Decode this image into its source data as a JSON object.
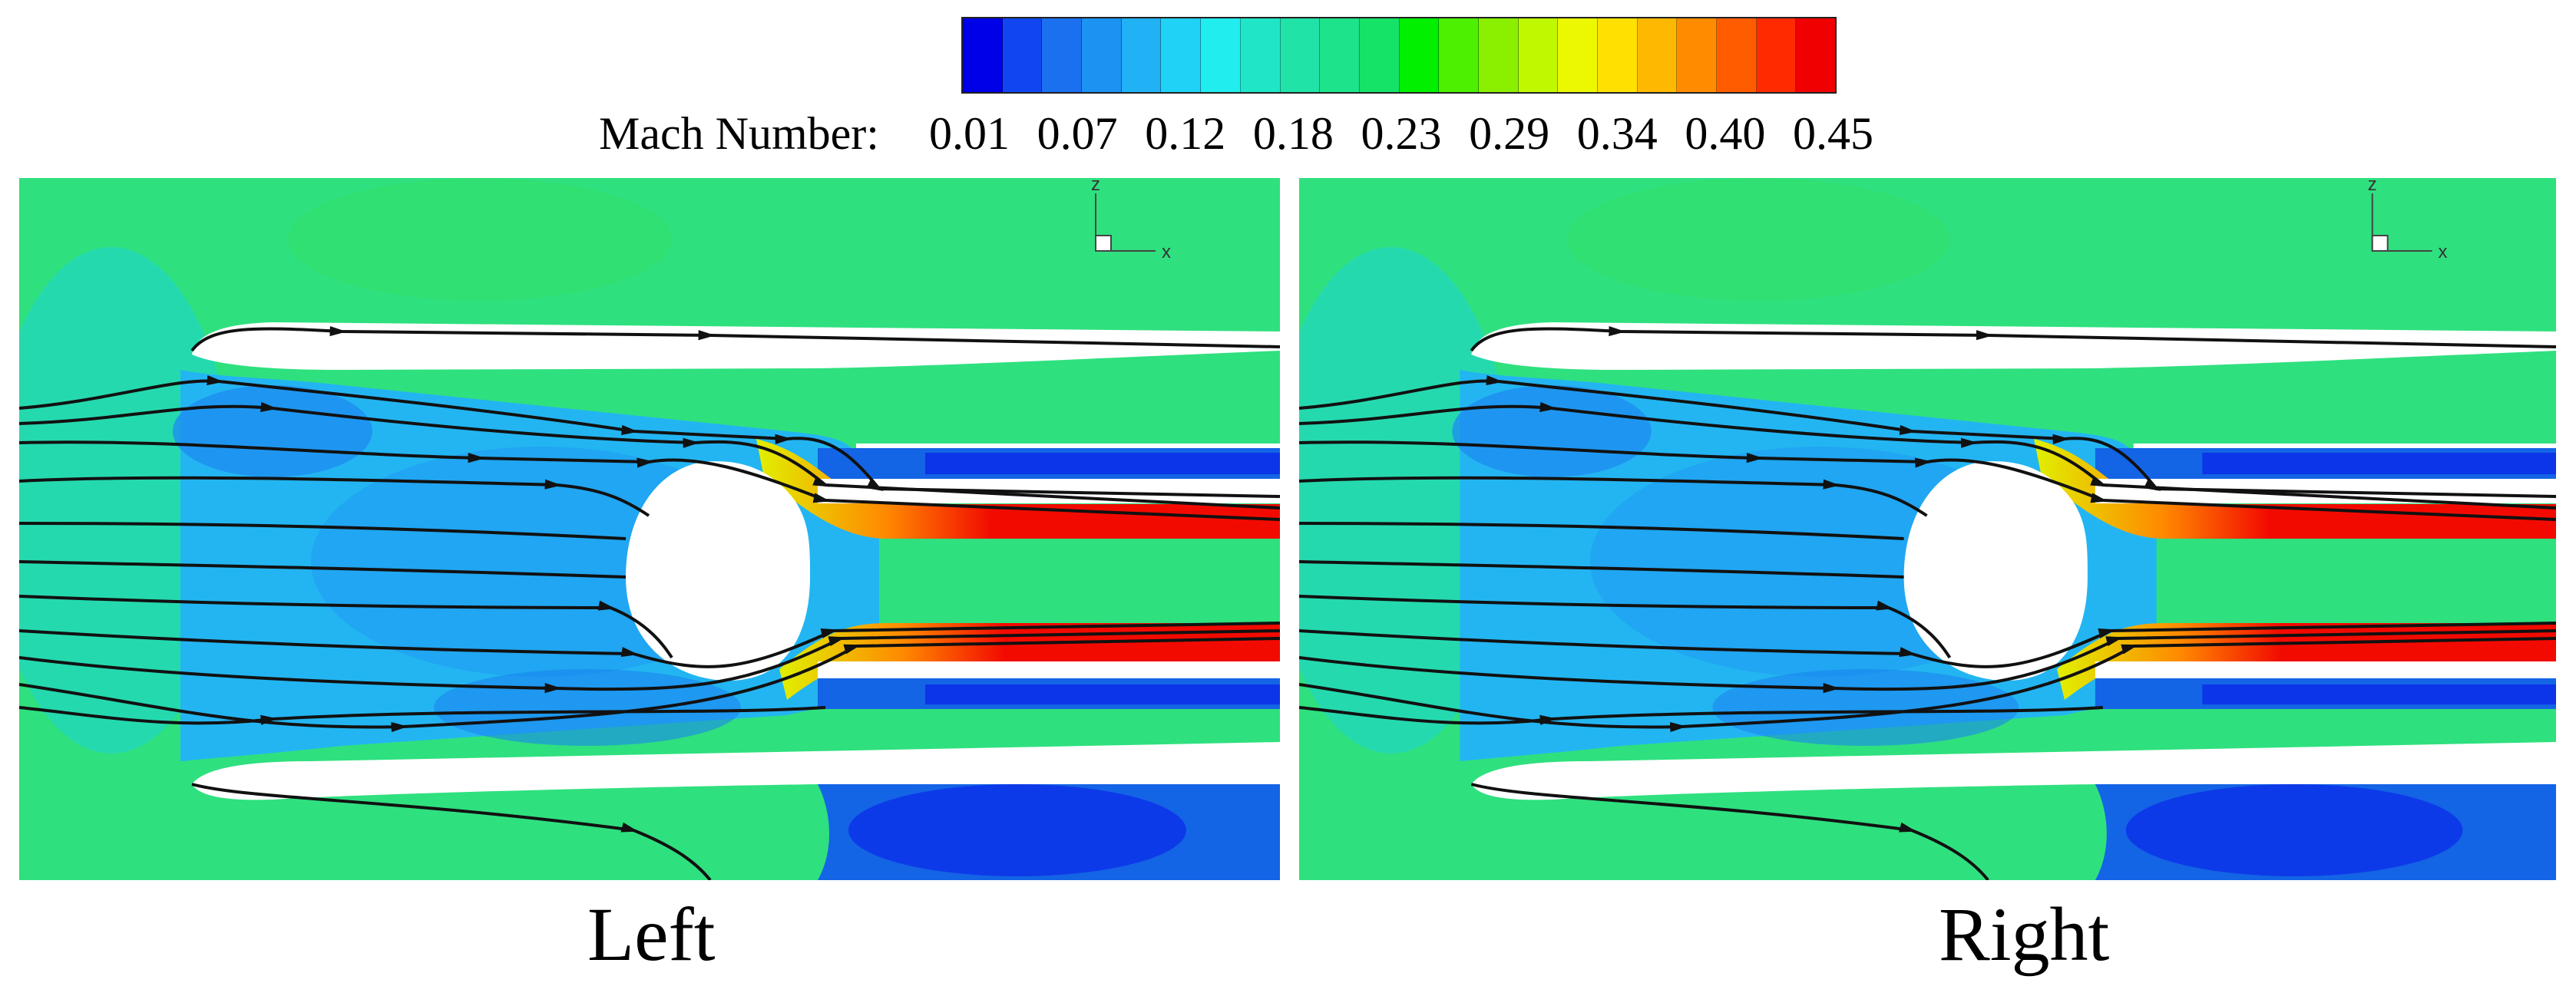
{
  "colorbar": {
    "label": "Mach Number:",
    "ticks": [
      "0.01",
      "0.07",
      "0.12",
      "0.18",
      "0.23",
      "0.29",
      "0.34",
      "0.40",
      "0.45"
    ],
    "colors": [
      "#0000e8",
      "#1046f0",
      "#1a70ef",
      "#1c92f2",
      "#20b2f5",
      "#20d2f5",
      "#21ecee",
      "#20e6c7",
      "#20e3a8",
      "#1de38a",
      "#15e368",
      "#00f000",
      "#4cf000",
      "#8af000",
      "#c0f800",
      "#ecf800",
      "#ffe000",
      "#ffb800",
      "#ff8c00",
      "#ff5c00",
      "#ff2a00",
      "#f00000"
    ]
  },
  "panels": [
    {
      "caption": "Left",
      "axis": {
        "z": "z",
        "x": "x"
      }
    },
    {
      "caption": "Right",
      "axis": {
        "z": "z",
        "x": "x"
      }
    }
  ],
  "palette": {
    "background": "#2fe07f",
    "core": "#23b5f2",
    "dark_blue": "#1464e6",
    "deep_blue": "#0a28e8",
    "jet_hot": "#f20a00",
    "jet_warm": "#ff8800",
    "jet_yellow": "#e0f000",
    "streamline": "#111111"
  }
}
